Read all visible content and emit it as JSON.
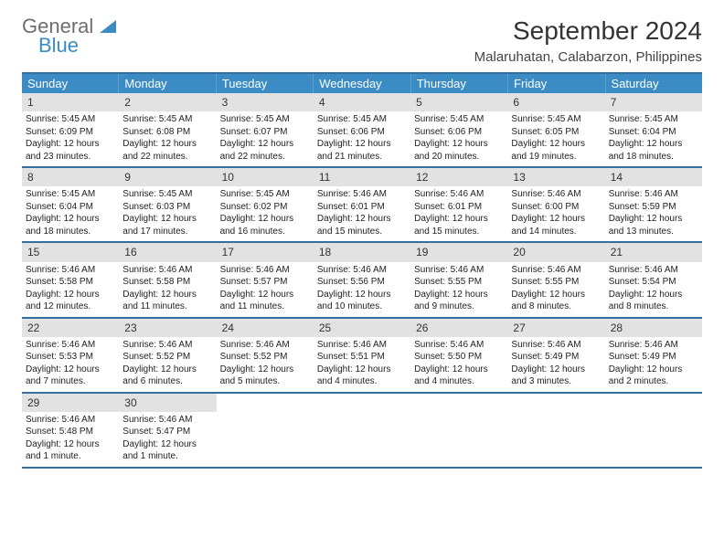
{
  "logo": {
    "general": "General",
    "blue": "Blue"
  },
  "title": "September 2024",
  "location": "Malaruhatan, Calabarzon, Philippines",
  "colors": {
    "header_bg": "#3b8bc4",
    "header_border": "#346ea0",
    "daynum_bg": "#e2e2e2",
    "text": "#222222",
    "logo_gray": "#6e6e6e",
    "logo_blue": "#3b8bc4"
  },
  "weekdays": [
    "Sunday",
    "Monday",
    "Tuesday",
    "Wednesday",
    "Thursday",
    "Friday",
    "Saturday"
  ],
  "weeks": [
    [
      {
        "n": "1",
        "sr": "Sunrise: 5:45 AM",
        "ss": "Sunset: 6:09 PM",
        "d1": "Daylight: 12 hours",
        "d2": "and 23 minutes."
      },
      {
        "n": "2",
        "sr": "Sunrise: 5:45 AM",
        "ss": "Sunset: 6:08 PM",
        "d1": "Daylight: 12 hours",
        "d2": "and 22 minutes."
      },
      {
        "n": "3",
        "sr": "Sunrise: 5:45 AM",
        "ss": "Sunset: 6:07 PM",
        "d1": "Daylight: 12 hours",
        "d2": "and 22 minutes."
      },
      {
        "n": "4",
        "sr": "Sunrise: 5:45 AM",
        "ss": "Sunset: 6:06 PM",
        "d1": "Daylight: 12 hours",
        "d2": "and 21 minutes."
      },
      {
        "n": "5",
        "sr": "Sunrise: 5:45 AM",
        "ss": "Sunset: 6:06 PM",
        "d1": "Daylight: 12 hours",
        "d2": "and 20 minutes."
      },
      {
        "n": "6",
        "sr": "Sunrise: 5:45 AM",
        "ss": "Sunset: 6:05 PM",
        "d1": "Daylight: 12 hours",
        "d2": "and 19 minutes."
      },
      {
        "n": "7",
        "sr": "Sunrise: 5:45 AM",
        "ss": "Sunset: 6:04 PM",
        "d1": "Daylight: 12 hours",
        "d2": "and 18 minutes."
      }
    ],
    [
      {
        "n": "8",
        "sr": "Sunrise: 5:45 AM",
        "ss": "Sunset: 6:04 PM",
        "d1": "Daylight: 12 hours",
        "d2": "and 18 minutes."
      },
      {
        "n": "9",
        "sr": "Sunrise: 5:45 AM",
        "ss": "Sunset: 6:03 PM",
        "d1": "Daylight: 12 hours",
        "d2": "and 17 minutes."
      },
      {
        "n": "10",
        "sr": "Sunrise: 5:45 AM",
        "ss": "Sunset: 6:02 PM",
        "d1": "Daylight: 12 hours",
        "d2": "and 16 minutes."
      },
      {
        "n": "11",
        "sr": "Sunrise: 5:46 AM",
        "ss": "Sunset: 6:01 PM",
        "d1": "Daylight: 12 hours",
        "d2": "and 15 minutes."
      },
      {
        "n": "12",
        "sr": "Sunrise: 5:46 AM",
        "ss": "Sunset: 6:01 PM",
        "d1": "Daylight: 12 hours",
        "d2": "and 15 minutes."
      },
      {
        "n": "13",
        "sr": "Sunrise: 5:46 AM",
        "ss": "Sunset: 6:00 PM",
        "d1": "Daylight: 12 hours",
        "d2": "and 14 minutes."
      },
      {
        "n": "14",
        "sr": "Sunrise: 5:46 AM",
        "ss": "Sunset: 5:59 PM",
        "d1": "Daylight: 12 hours",
        "d2": "and 13 minutes."
      }
    ],
    [
      {
        "n": "15",
        "sr": "Sunrise: 5:46 AM",
        "ss": "Sunset: 5:58 PM",
        "d1": "Daylight: 12 hours",
        "d2": "and 12 minutes."
      },
      {
        "n": "16",
        "sr": "Sunrise: 5:46 AM",
        "ss": "Sunset: 5:58 PM",
        "d1": "Daylight: 12 hours",
        "d2": "and 11 minutes."
      },
      {
        "n": "17",
        "sr": "Sunrise: 5:46 AM",
        "ss": "Sunset: 5:57 PM",
        "d1": "Daylight: 12 hours",
        "d2": "and 11 minutes."
      },
      {
        "n": "18",
        "sr": "Sunrise: 5:46 AM",
        "ss": "Sunset: 5:56 PM",
        "d1": "Daylight: 12 hours",
        "d2": "and 10 minutes."
      },
      {
        "n": "19",
        "sr": "Sunrise: 5:46 AM",
        "ss": "Sunset: 5:55 PM",
        "d1": "Daylight: 12 hours",
        "d2": "and 9 minutes."
      },
      {
        "n": "20",
        "sr": "Sunrise: 5:46 AM",
        "ss": "Sunset: 5:55 PM",
        "d1": "Daylight: 12 hours",
        "d2": "and 8 minutes."
      },
      {
        "n": "21",
        "sr": "Sunrise: 5:46 AM",
        "ss": "Sunset: 5:54 PM",
        "d1": "Daylight: 12 hours",
        "d2": "and 8 minutes."
      }
    ],
    [
      {
        "n": "22",
        "sr": "Sunrise: 5:46 AM",
        "ss": "Sunset: 5:53 PM",
        "d1": "Daylight: 12 hours",
        "d2": "and 7 minutes."
      },
      {
        "n": "23",
        "sr": "Sunrise: 5:46 AM",
        "ss": "Sunset: 5:52 PM",
        "d1": "Daylight: 12 hours",
        "d2": "and 6 minutes."
      },
      {
        "n": "24",
        "sr": "Sunrise: 5:46 AM",
        "ss": "Sunset: 5:52 PM",
        "d1": "Daylight: 12 hours",
        "d2": "and 5 minutes."
      },
      {
        "n": "25",
        "sr": "Sunrise: 5:46 AM",
        "ss": "Sunset: 5:51 PM",
        "d1": "Daylight: 12 hours",
        "d2": "and 4 minutes."
      },
      {
        "n": "26",
        "sr": "Sunrise: 5:46 AM",
        "ss": "Sunset: 5:50 PM",
        "d1": "Daylight: 12 hours",
        "d2": "and 4 minutes."
      },
      {
        "n": "27",
        "sr": "Sunrise: 5:46 AM",
        "ss": "Sunset: 5:49 PM",
        "d1": "Daylight: 12 hours",
        "d2": "and 3 minutes."
      },
      {
        "n": "28",
        "sr": "Sunrise: 5:46 AM",
        "ss": "Sunset: 5:49 PM",
        "d1": "Daylight: 12 hours",
        "d2": "and 2 minutes."
      }
    ],
    [
      {
        "n": "29",
        "sr": "Sunrise: 5:46 AM",
        "ss": "Sunset: 5:48 PM",
        "d1": "Daylight: 12 hours",
        "d2": "and 1 minute."
      },
      {
        "n": "30",
        "sr": "Sunrise: 5:46 AM",
        "ss": "Sunset: 5:47 PM",
        "d1": "Daylight: 12 hours",
        "d2": "and 1 minute."
      },
      {
        "empty": true
      },
      {
        "empty": true
      },
      {
        "empty": true
      },
      {
        "empty": true
      },
      {
        "empty": true
      }
    ]
  ]
}
